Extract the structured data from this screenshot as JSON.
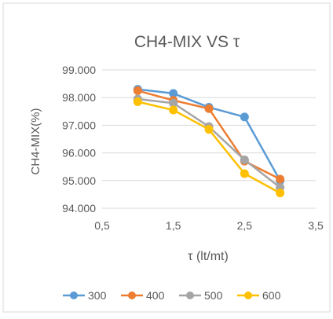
{
  "chart_data": {
    "type": "line",
    "title": "CH4-MIX VS τ",
    "xlabel": "τ  (lt/mt)",
    "ylabel": "CH4-MIX(%)",
    "xlim": [
      0.5,
      3.5
    ],
    "ylim": [
      94.0,
      99.0
    ],
    "x_ticks": [
      "0,5",
      "1,5",
      "2,5",
      "3,5"
    ],
    "x_tick_values": [
      0.5,
      1.5,
      2.5,
      3.5
    ],
    "y_ticks": [
      "94.000",
      "95.000",
      "96.000",
      "97.000",
      "98.000",
      "99.000"
    ],
    "y_tick_values": [
      94,
      95,
      96,
      97,
      98,
      99
    ],
    "grid": "horizontal",
    "legend_position": "bottom",
    "x": [
      1.0,
      1.5,
      2.0,
      2.5,
      3.0
    ],
    "series": [
      {
        "name": "300",
        "color": "#5B9BD5",
        "values": [
          98.3,
          98.15,
          97.65,
          97.3,
          95.0
        ]
      },
      {
        "name": "400",
        "color": "#ED7D31",
        "values": [
          98.25,
          97.9,
          97.6,
          95.7,
          95.05
        ]
      },
      {
        "name": "500",
        "color": "#A5A5A5",
        "values": [
          97.95,
          97.8,
          96.95,
          95.75,
          94.75
        ]
      },
      {
        "name": "600",
        "color": "#FFC000",
        "values": [
          97.85,
          97.55,
          96.85,
          95.25,
          94.55
        ]
      }
    ]
  }
}
